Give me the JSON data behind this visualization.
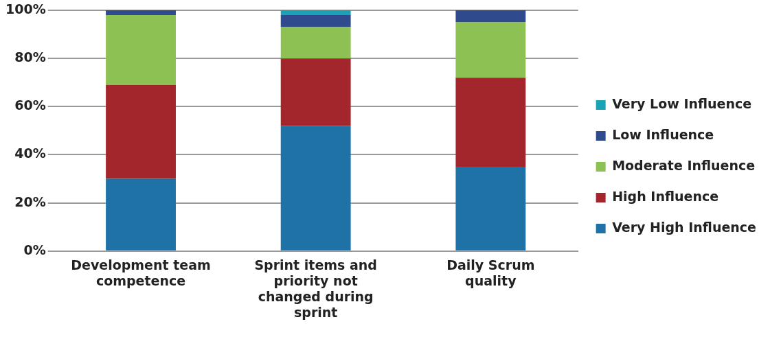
{
  "chart_data": {
    "type": "bar",
    "stacked": true,
    "categories": [
      "Development team competence",
      "Sprint items and priority not changed during sprint",
      "Daily Scrum quality"
    ],
    "series": [
      {
        "name": "Very High Influence",
        "color": "#1f72a6",
        "values": [
          30,
          52,
          35
        ]
      },
      {
        "name": "High Influence",
        "color": "#a3262c",
        "values": [
          39,
          28,
          37
        ]
      },
      {
        "name": "Moderate Influence",
        "color": "#8dc153",
        "values": [
          29,
          13,
          23
        ]
      },
      {
        "name": "Low Influence",
        "color": "#2f4b8e",
        "values": [
          2,
          5,
          5
        ]
      },
      {
        "name": "Very Low Influence",
        "color": "#1aa3b5",
        "values": [
          0,
          2,
          0
        ]
      }
    ],
    "ylim": [
      0,
      100
    ],
    "yticks": [
      {
        "value": 0,
        "label": "0%"
      },
      {
        "value": 20,
        "label": "20%"
      },
      {
        "value": 40,
        "label": "40%"
      },
      {
        "value": 60,
        "label": "60%"
      },
      {
        "value": 80,
        "label": "80%"
      },
      {
        "value": 100,
        "label": "100%"
      }
    ],
    "grid": "y",
    "legend": "right"
  }
}
